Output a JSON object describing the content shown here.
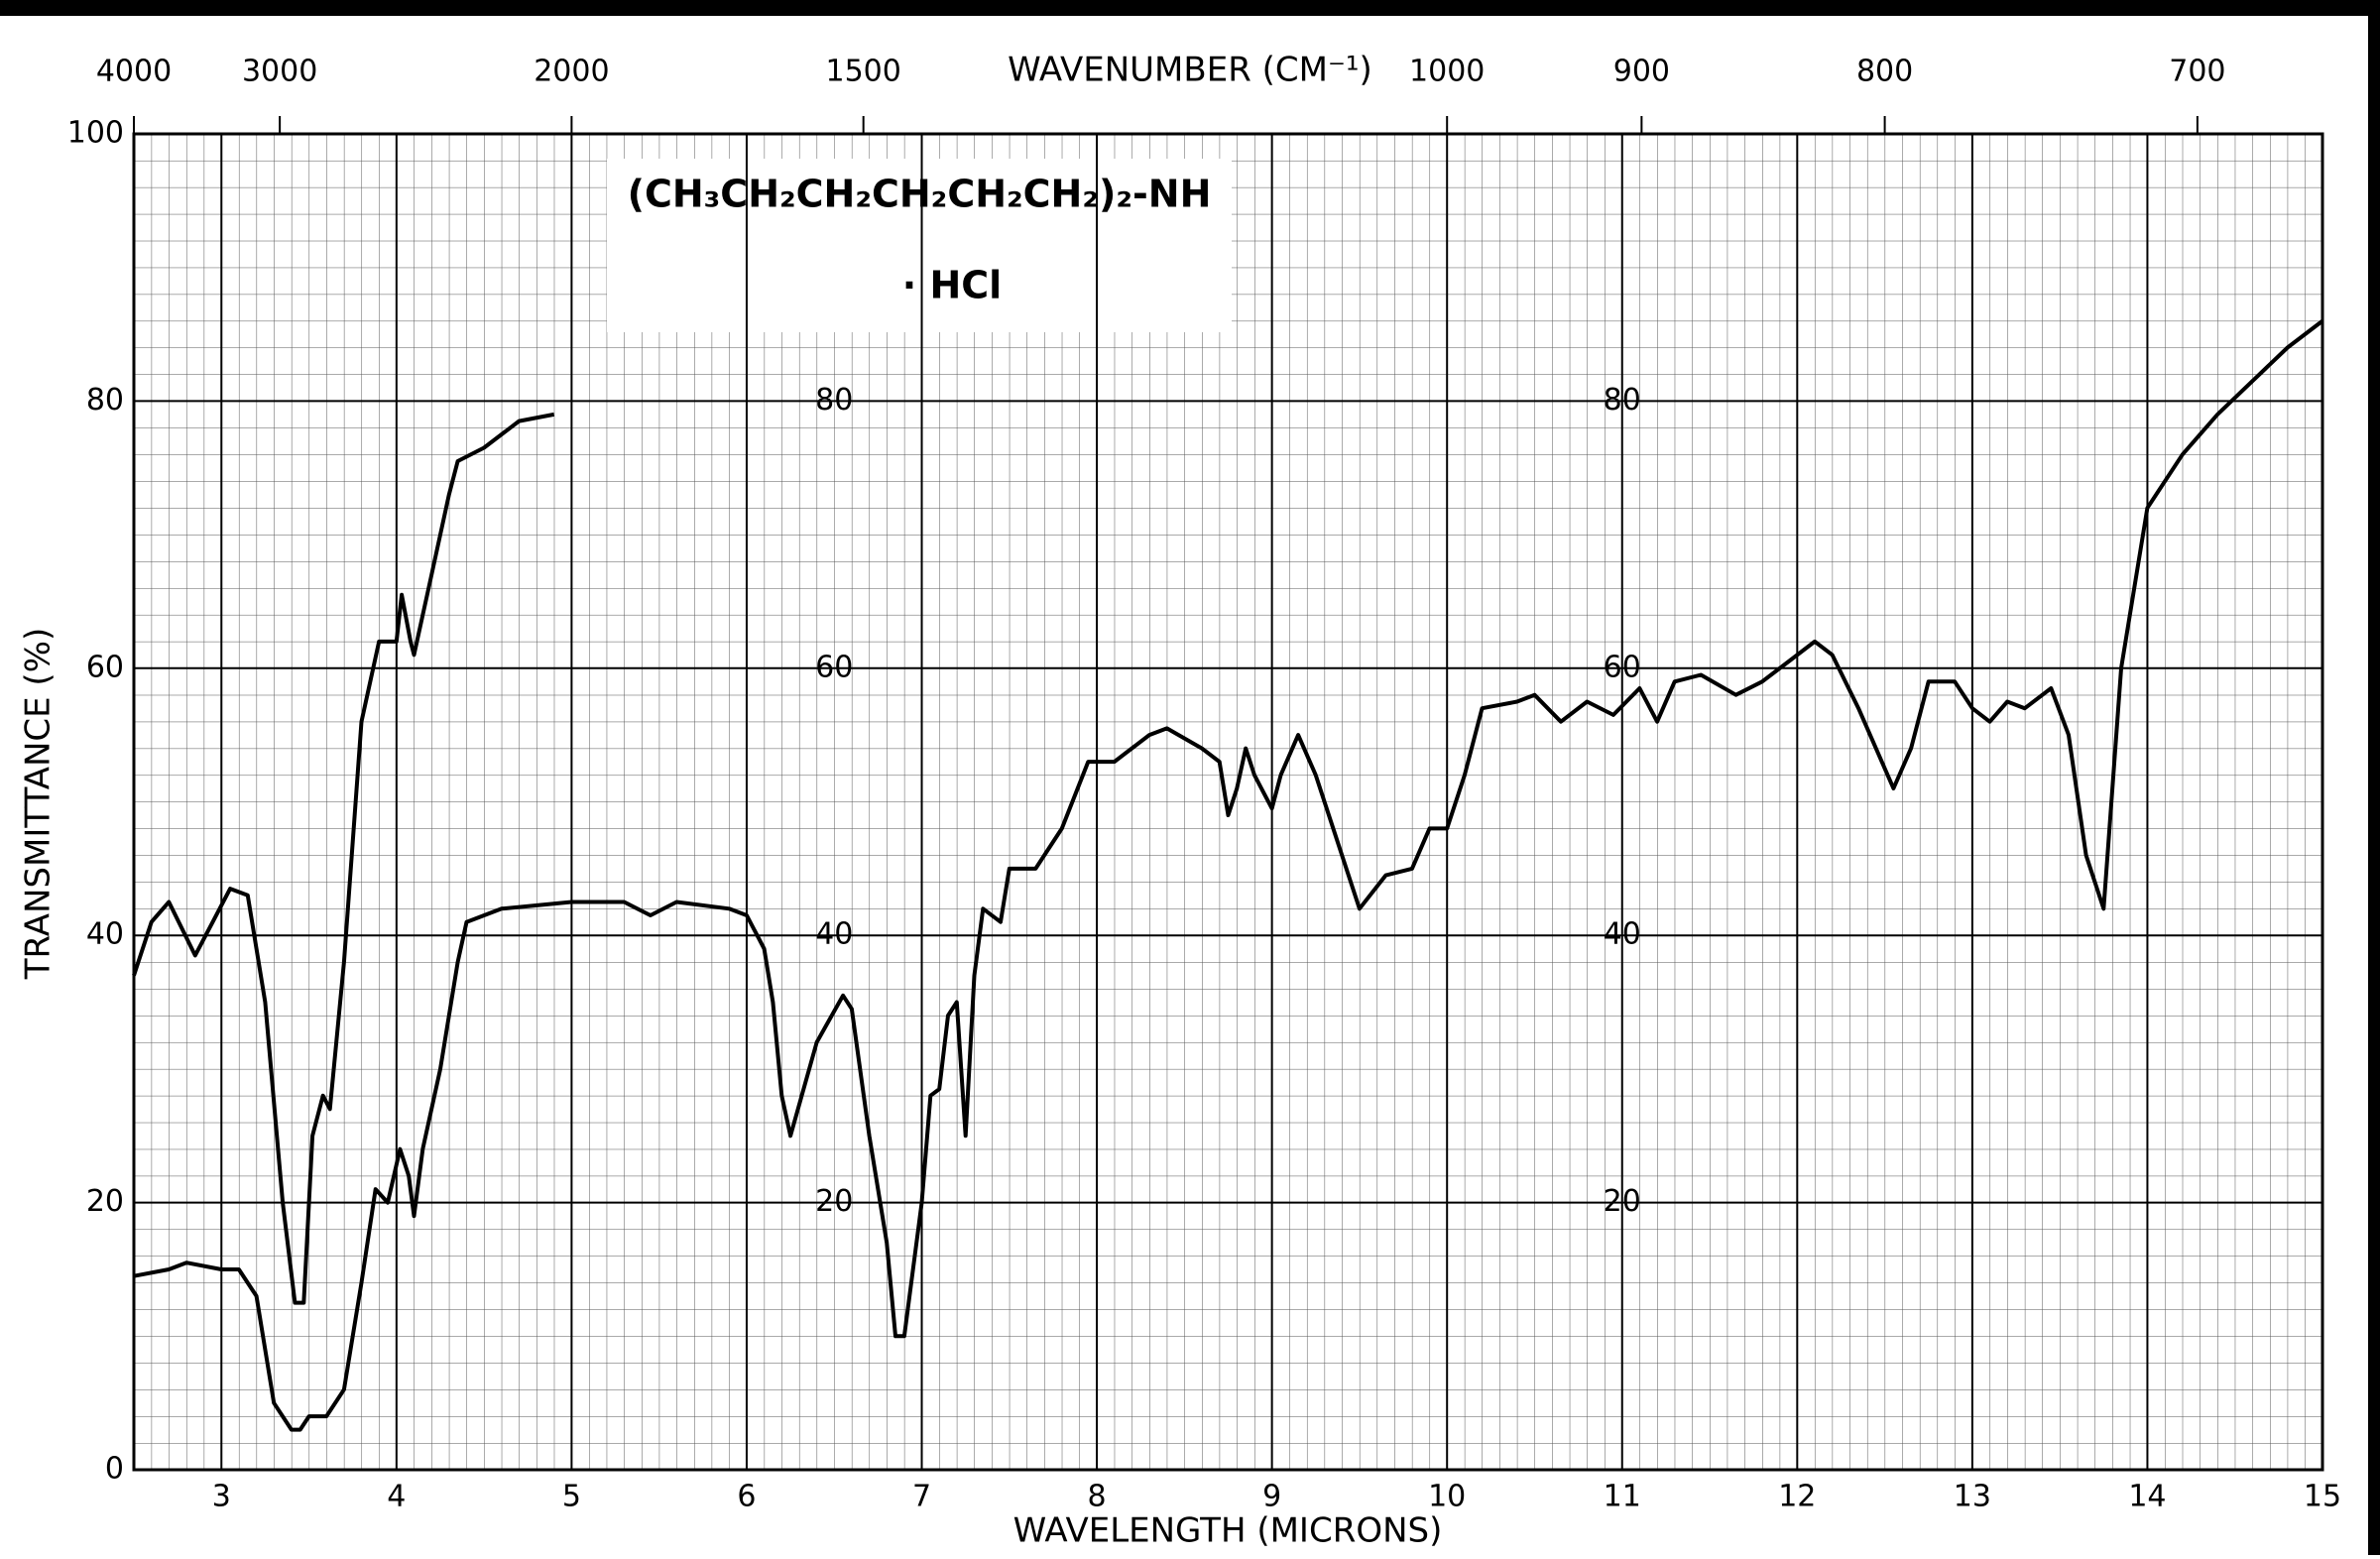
{
  "chart_data": {
    "type": "line",
    "compound": "(CH₃CH₂CH₂CH₂CH₂CH₂)₂-NH",
    "compound_salt": "· HCl",
    "x_label": "WAVELENGTH (MICRONS)",
    "y_label": "TRANSMITTANCE (%)",
    "top_axis": {
      "label": "WAVENUMBER (CM⁻¹)",
      "ticks": [
        4000,
        3000,
        2000,
        1500,
        1000,
        900,
        800,
        700
      ]
    },
    "xlim": [
      2.5,
      15
    ],
    "xticks": [
      3,
      4,
      5,
      6,
      7,
      8,
      9,
      10,
      11,
      12,
      13,
      14,
      15
    ],
    "ylim": [
      0,
      100
    ],
    "yticks": [
      0,
      20,
      40,
      60,
      80,
      100
    ],
    "inner_labels": [
      80,
      60,
      40,
      20
    ],
    "grid": true,
    "series": [
      {
        "color": "#000000",
        "x": [
          2.5,
          2.7,
          2.8,
          3.0,
          3.1,
          3.2,
          3.3,
          3.4,
          3.45,
          3.5,
          3.6,
          3.7,
          3.8,
          3.88,
          3.95,
          4.02,
          4.07,
          4.1,
          4.15,
          4.25,
          4.35,
          4.4,
          4.6,
          5.0,
          5.3,
          5.45,
          5.6,
          5.9,
          6.0,
          6.1,
          6.15,
          6.2,
          6.25,
          6.4,
          6.55,
          6.6,
          6.7,
          6.8,
          6.85,
          6.9,
          7.0,
          7.05,
          7.1,
          7.15,
          7.2,
          7.25,
          7.3,
          7.35,
          7.45,
          7.5,
          7.65,
          7.8,
          7.95,
          8.1,
          8.3,
          8.4,
          8.6,
          8.7,
          8.75,
          8.8,
          8.85,
          8.9,
          9.0,
          9.05,
          9.15,
          9.25,
          9.35,
          9.5,
          9.65,
          9.8,
          9.9,
          10.0,
          10.1,
          10.2,
          10.4,
          10.5,
          10.65,
          10.8,
          10.95,
          11.1,
          11.2,
          11.3,
          11.45,
          11.65,
          11.8,
          11.95,
          12.1,
          12.2,
          12.35,
          12.55,
          12.65,
          12.75,
          12.9,
          13.0,
          13.1,
          13.2,
          13.3,
          13.45,
          13.55,
          13.65,
          13.75,
          13.85,
          14.0,
          14.2,
          14.4,
          14.6,
          14.8,
          15.0
        ],
        "values": [
          14.5,
          15,
          15.5,
          15,
          15,
          13,
          5,
          3,
          3,
          4,
          4,
          6,
          14,
          21,
          20,
          24,
          22,
          19,
          24,
          30,
          38,
          41,
          42,
          42.5,
          42.5,
          41.5,
          42.5,
          42,
          41.5,
          39,
          35,
          28,
          25,
          32,
          35.5,
          34.5,
          25,
          17,
          10,
          10,
          20,
          28,
          28.5,
          34,
          35,
          25,
          37,
          42,
          41,
          45,
          45,
          48,
          53,
          53,
          55,
          55.5,
          54,
          53,
          49,
          51,
          54,
          52,
          49.5,
          52,
          55,
          52,
          48,
          42,
          44.5,
          45,
          48,
          48,
          52,
          57,
          57.5,
          58,
          56,
          57.5,
          56.5,
          58.5,
          56,
          59,
          59.5,
          58,
          59,
          60.5,
          62,
          61,
          57,
          51,
          54,
          59,
          59,
          57,
          56,
          57.5,
          57,
          58.5,
          55,
          46,
          42,
          60,
          72,
          76,
          79,
          81.5,
          84,
          86
        ]
      },
      {
        "color": "#000000",
        "x": [
          2.5,
          2.6,
          2.7,
          2.85,
          2.95,
          3.05,
          3.15,
          3.25,
          3.35,
          3.42,
          3.47,
          3.52,
          3.58,
          3.62,
          3.7,
          3.8,
          3.9,
          4.0,
          4.03,
          4.08,
          4.1,
          4.2,
          4.3,
          4.35,
          4.5,
          4.7,
          4.9
        ],
        "values": [
          37,
          41,
          42.5,
          38.5,
          41,
          43.5,
          43,
          35,
          20,
          12.5,
          12.5,
          25,
          28,
          27,
          38,
          56,
          62,
          62,
          65.5,
          62,
          61,
          67,
          73,
          75.5,
          76.5,
          78.5,
          79
        ]
      }
    ]
  }
}
